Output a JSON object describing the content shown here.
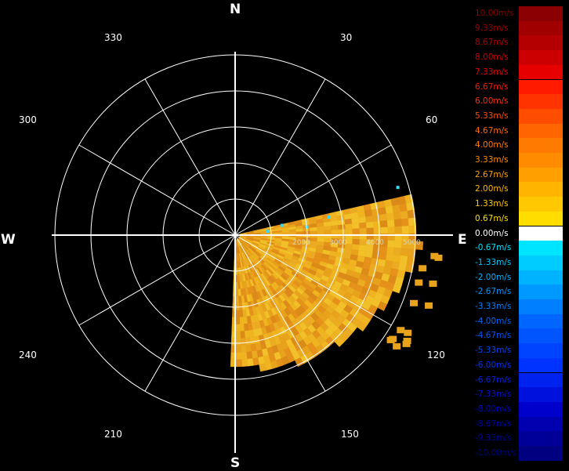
{
  "compass": {
    "north": "N",
    "south": "S",
    "east": "E",
    "west": "W"
  },
  "bearings": [
    "30",
    "60",
    "120",
    "150",
    "210",
    "240",
    "300",
    "330"
  ],
  "range_labels": [
    "2000",
    "3000",
    "4000",
    "5000"
  ],
  "legend": {
    "items": [
      {
        "label": "10.00m/s",
        "color": "#8b0000"
      },
      {
        "label": "9.33m/s",
        "color": "#a00000"
      },
      {
        "label": "8.67m/s",
        "color": "#b40000"
      },
      {
        "label": "8.00m/s",
        "color": "#cc0000"
      },
      {
        "label": "7.33m/s",
        "color": "#e60000"
      },
      {
        "label": "6.67m/s",
        "color": "#ff1a00"
      },
      {
        "label": "6.00m/s",
        "color": "#ff3300"
      },
      {
        "label": "5.33m/s",
        "color": "#ff4d00"
      },
      {
        "label": "4.67m/s",
        "color": "#ff6600"
      },
      {
        "label": "4.00m/s",
        "color": "#ff7a00"
      },
      {
        "label": "3.33m/s",
        "color": "#ff8c00"
      },
      {
        "label": "2.67m/s",
        "color": "#ffa000"
      },
      {
        "label": "2.00m/s",
        "color": "#ffb400"
      },
      {
        "label": "1.33m/s",
        "color": "#ffc800"
      },
      {
        "label": "0.67m/s",
        "color": "#ffdd00"
      },
      {
        "label": "0.00m/s",
        "color": "#ffffff"
      },
      {
        "label": "-0.67m/s",
        "color": "#00e5ff"
      },
      {
        "label": "-1.33m/s",
        "color": "#00ccff"
      },
      {
        "label": "-2.00m/s",
        "color": "#00b3ff"
      },
      {
        "label": "-2.67m/s",
        "color": "#0099ff"
      },
      {
        "label": "-3.33m/s",
        "color": "#0080ff"
      },
      {
        "label": "-4.00m/s",
        "color": "#0066ff"
      },
      {
        "label": "-4.67m/s",
        "color": "#0055ff"
      },
      {
        "label": "-5.33m/s",
        "color": "#0044ff"
      },
      {
        "label": "-6.00m/s",
        "color": "#0033ff"
      },
      {
        "label": "-6.67m/s",
        "color": "#0022ee"
      },
      {
        "label": "-7.33m/s",
        "color": "#0011dd"
      },
      {
        "label": "-8.00m/s",
        "color": "#0000cc"
      },
      {
        "label": "-8.67m/s",
        "color": "#0000b0"
      },
      {
        "label": "-9.33m/s",
        "color": "#000099"
      },
      {
        "label": "-10.00m/s",
        "color": "#000080"
      }
    ]
  },
  "colors": {
    "grid": "#ffffff",
    "echo_primary": "#f0b420",
    "echo_secondary": "#e89a1c",
    "echo_negative": "#3cd8f0"
  }
}
